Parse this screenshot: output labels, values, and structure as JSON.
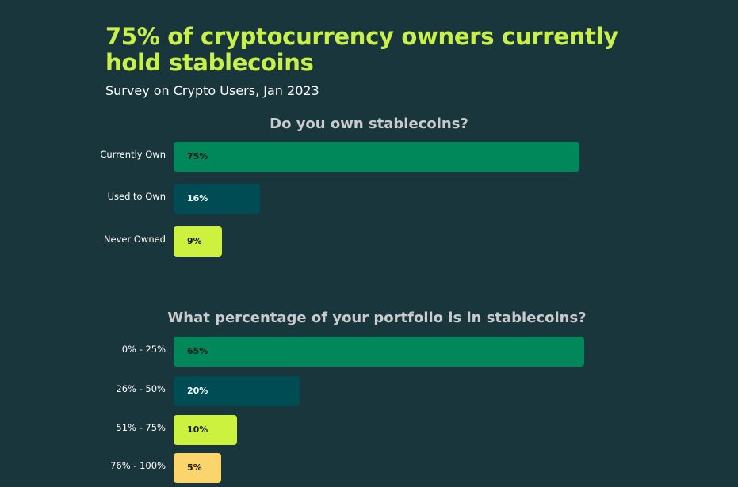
{
  "header": {
    "title": "75% of cryptocurrency owners currently hold stablecoins",
    "subtitle": "Survey on Crypto Users, Jan 2023"
  },
  "colors": {
    "background": "#1a363d",
    "title": "#c8f04a",
    "green": "#00875a",
    "teal": "#004c55",
    "lime": "#ccf23f",
    "yellow": "#fbd56b"
  },
  "chart_data": [
    {
      "type": "bar",
      "orientation": "horizontal",
      "title": "Do you own stablecoins?",
      "categories": [
        "Currently Own",
        "Used to Own",
        "Never Owned"
      ],
      "values": [
        75,
        16,
        9
      ],
      "value_labels": [
        "75%",
        "16%",
        "9%"
      ],
      "bar_colors": [
        "#00875a",
        "#004c55",
        "#ccf23f"
      ],
      "label_colors": [
        "#1a1a1a",
        "#ffffff",
        "#1a1a1a"
      ],
      "xlim": [
        0,
        75
      ]
    },
    {
      "type": "bar",
      "orientation": "horizontal",
      "title": "What percentage of your portfolio is in stablecoins?",
      "categories": [
        "0% - 25%",
        "26% - 50%",
        "51% - 75%",
        "76% - 100%"
      ],
      "values": [
        65,
        20,
        10,
        5
      ],
      "value_labels": [
        "65%",
        "20%",
        "10%",
        "5%"
      ],
      "bar_colors": [
        "#00875a",
        "#004c55",
        "#ccf23f",
        "#fbd56b"
      ],
      "label_colors": [
        "#1a1a1a",
        "#ffffff",
        "#1a1a1a",
        "#1a1a1a"
      ],
      "xlim": [
        0,
        65
      ]
    }
  ]
}
